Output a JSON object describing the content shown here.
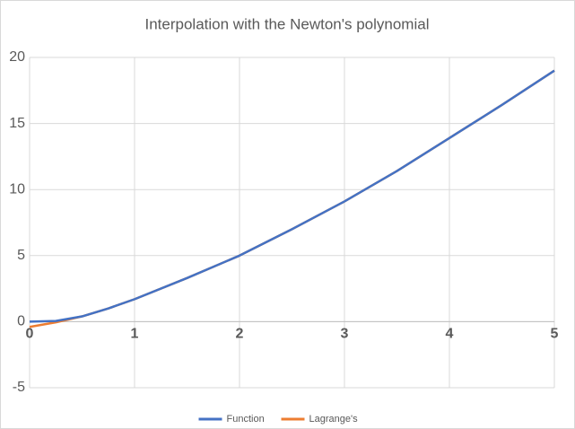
{
  "chart_data": {
    "type": "line",
    "title": "Interpolation with the Newton's polynomial",
    "x": [
      0,
      0.25,
      0.5,
      0.75,
      1,
      1.5,
      2,
      2.5,
      3,
      3.5,
      4,
      4.5,
      5
    ],
    "series": [
      {
        "name": "Function",
        "color": "#4472c4",
        "values": [
          0,
          0.05,
          0.4,
          1.0,
          1.7,
          3.3,
          5.0,
          7.0,
          9.1,
          11.4,
          13.9,
          16.4,
          19.0
        ]
      },
      {
        "name": "Lagrange's",
        "color": "#ed7d31",
        "values": [
          -0.4,
          -0.05,
          0.4,
          1.0,
          1.7,
          3.3,
          5.0,
          7.0,
          9.1,
          11.4,
          13.9,
          16.4,
          19.0
        ]
      }
    ],
    "xlim": [
      0,
      5
    ],
    "xticks": [
      0,
      1,
      2,
      3,
      4,
      5
    ],
    "ylim": [
      -5,
      20
    ],
    "yticks": [
      -5,
      0,
      5,
      10,
      15,
      20
    ],
    "grid": true,
    "legend": "bottom"
  }
}
